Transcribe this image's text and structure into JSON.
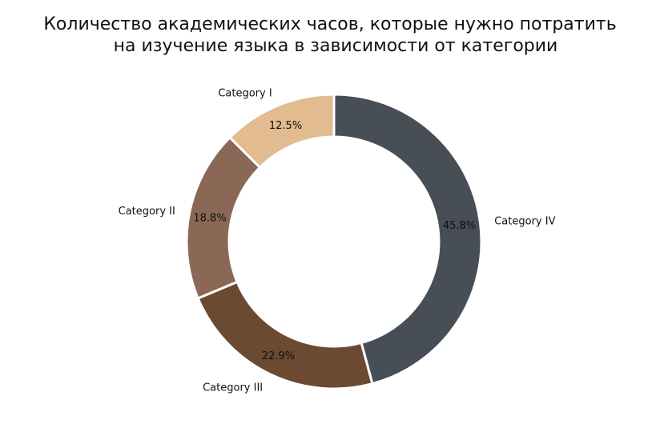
{
  "chart_data": {
    "type": "pie",
    "title_lines": [
      "Количество академических часов, которые нужно потратить",
      "на изучение языка в зависимости от категории"
    ],
    "slices": [
      {
        "label": "Category I",
        "value": 12.5,
        "pct_label": "12.5%",
        "color": "#e2bb90"
      },
      {
        "label": "Category II",
        "value": 18.8,
        "pct_label": "18.8%",
        "color": "#8b6756"
      },
      {
        "label": "Category III",
        "value": 22.9,
        "pct_label": "22.9%",
        "color": "#6b4a31"
      },
      {
        "label": "Category IV",
        "value": 45.8,
        "pct_label": "45.8%",
        "color": "#474e56"
      }
    ],
    "start_angle_deg": 90,
    "direction": "counterclockwise",
    "donut": true,
    "edge_color": "#ffffff",
    "legend": "none"
  }
}
